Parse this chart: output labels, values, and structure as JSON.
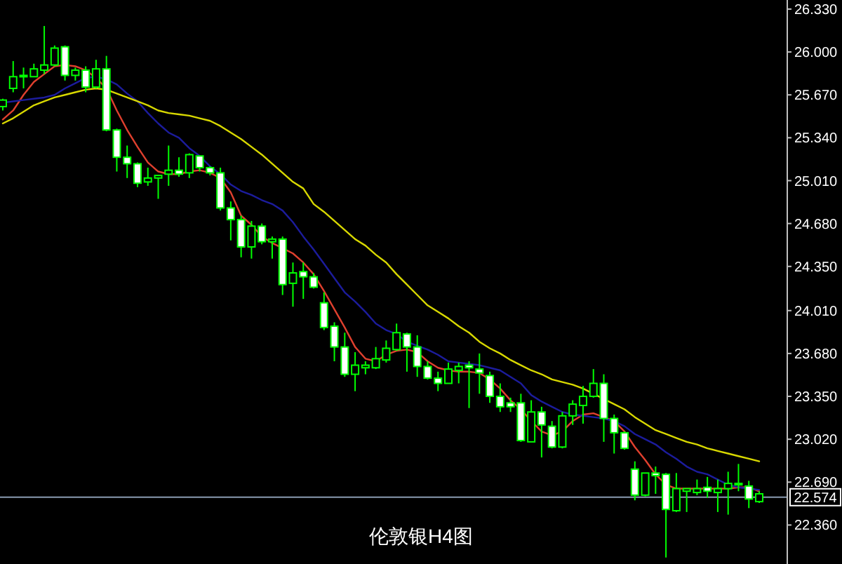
{
  "chart_data": {
    "type": "candlestick",
    "title": "伦敦银H4图",
    "categories": [
      null,
      null,
      null,
      null,
      null,
      null,
      null,
      null,
      null,
      null,
      null,
      null,
      null,
      null,
      null,
      null,
      null,
      null,
      null,
      null,
      null,
      null,
      null,
      null,
      null,
      null,
      null,
      null,
      null,
      null,
      null,
      null,
      null,
      null,
      null,
      null,
      null,
      null,
      null,
      null,
      null,
      null,
      null,
      null,
      null,
      null,
      null,
      null,
      null,
      null,
      null,
      null,
      null,
      null,
      null,
      null,
      null,
      null,
      null,
      null,
      null,
      null,
      null,
      null,
      null,
      null,
      null,
      null,
      null,
      null,
      null,
      null,
      null,
      null
    ],
    "ylim": [
      22.06,
      26.4
    ],
    "yticks": [
      {
        "value": 26.33,
        "label": "26.330"
      },
      {
        "value": 26.0,
        "label": "26.000"
      },
      {
        "value": 25.67,
        "label": "25.670"
      },
      {
        "value": 25.34,
        "label": "25.340"
      },
      {
        "value": 25.01,
        "label": "25.010"
      },
      {
        "value": 24.68,
        "label": "24.680"
      },
      {
        "value": 24.35,
        "label": "24.350"
      },
      {
        "value": 24.01,
        "label": "24.010"
      },
      {
        "value": 23.68,
        "label": "23.680"
      },
      {
        "value": 23.35,
        "label": "23.350"
      },
      {
        "value": 23.02,
        "label": "23.020"
      },
      {
        "value": 22.69,
        "label": "22.690"
      },
      {
        "value": 22.36,
        "label": "22.360"
      }
    ],
    "tick_labels": "y",
    "grid": false,
    "ref_lines": [
      {
        "axis": "y",
        "value": 22.574,
        "label": "22.574",
        "color": "#8a9bb0"
      }
    ],
    "series": [
      {
        "color": "#00ff00",
        "ohlc": [
          [
            25.58,
            25.64,
            25.55,
            25.63
          ],
          [
            25.72,
            25.93,
            25.69,
            25.81
          ],
          [
            25.81,
            25.88,
            25.72,
            25.82
          ],
          [
            25.81,
            25.91,
            25.81,
            25.87
          ],
          [
            25.86,
            26.2,
            25.83,
            25.9
          ],
          [
            25.9,
            26.05,
            25.89,
            26.03
          ],
          [
            26.04,
            26.05,
            25.78,
            25.82
          ],
          [
            25.82,
            25.88,
            25.78,
            25.86
          ],
          [
            25.86,
            25.89,
            25.69,
            25.73
          ],
          [
            25.73,
            25.94,
            25.72,
            25.87
          ],
          [
            25.87,
            25.97,
            25.39,
            25.4
          ],
          [
            25.4,
            25.41,
            25.08,
            25.19
          ],
          [
            25.19,
            25.28,
            25.03,
            25.14
          ],
          [
            25.14,
            25.15,
            24.96,
            24.99
          ],
          [
            25.0,
            25.11,
            24.97,
            25.03
          ],
          [
            25.03,
            25.05,
            24.87,
            25.05
          ],
          [
            25.06,
            25.28,
            24.97,
            25.09
          ],
          [
            25.09,
            25.19,
            25.04,
            25.06
          ],
          [
            25.07,
            25.22,
            25.03,
            25.21
          ],
          [
            25.2,
            25.2,
            25.08,
            25.11
          ],
          [
            25.11,
            25.12,
            25.05,
            25.07
          ],
          [
            25.07,
            25.11,
            24.78,
            24.8
          ],
          [
            24.8,
            24.85,
            24.55,
            24.71
          ],
          [
            24.71,
            24.74,
            24.42,
            24.5
          ],
          [
            24.5,
            24.7,
            24.41,
            24.66
          ],
          [
            24.66,
            24.68,
            24.52,
            24.54
          ],
          [
            24.54,
            24.58,
            24.41,
            24.56
          ],
          [
            24.56,
            24.58,
            24.13,
            24.21
          ],
          [
            24.22,
            24.38,
            24.04,
            24.3
          ],
          [
            24.31,
            24.38,
            24.1,
            24.27
          ],
          [
            24.27,
            24.3,
            24.18,
            24.19
          ],
          [
            24.07,
            24.15,
            23.86,
            23.88
          ],
          [
            23.89,
            23.92,
            23.62,
            23.73
          ],
          [
            23.73,
            23.84,
            23.5,
            23.52
          ],
          [
            23.52,
            23.69,
            23.39,
            23.59
          ],
          [
            23.57,
            23.62,
            23.52,
            23.59
          ],
          [
            23.57,
            23.73,
            23.56,
            23.64
          ],
          [
            23.63,
            23.78,
            23.61,
            23.72
          ],
          [
            23.71,
            23.91,
            23.7,
            23.84
          ],
          [
            23.83,
            23.84,
            23.54,
            23.73
          ],
          [
            23.73,
            23.82,
            23.5,
            23.58
          ],
          [
            23.58,
            23.62,
            23.48,
            23.49
          ],
          [
            23.49,
            23.54,
            23.39,
            23.45
          ],
          [
            23.45,
            23.61,
            23.45,
            23.56
          ],
          [
            23.55,
            23.61,
            23.45,
            23.58
          ],
          [
            23.59,
            23.62,
            23.26,
            23.57
          ],
          [
            23.56,
            23.68,
            23.37,
            23.53
          ],
          [
            23.51,
            23.54,
            23.3,
            23.35
          ],
          [
            23.35,
            23.45,
            23.23,
            23.27
          ],
          [
            23.3,
            23.34,
            23.23,
            23.27
          ],
          [
            23.3,
            23.37,
            23.0,
            23.01
          ],
          [
            23.0,
            23.32,
            23.0,
            23.23
          ],
          [
            23.23,
            23.27,
            22.88,
            23.13
          ],
          [
            23.12,
            23.16,
            22.95,
            22.96
          ],
          [
            22.96,
            23.23,
            22.95,
            23.2
          ],
          [
            23.2,
            23.32,
            23.13,
            23.29
          ],
          [
            23.28,
            23.43,
            23.14,
            23.35
          ],
          [
            23.35,
            23.56,
            23.34,
            23.45
          ],
          [
            23.45,
            23.52,
            23.0,
            23.18
          ],
          [
            23.18,
            23.21,
            22.91,
            23.07
          ],
          [
            23.07,
            23.08,
            22.94,
            22.95
          ],
          [
            22.79,
            22.85,
            22.55,
            22.59
          ],
          [
            22.59,
            22.76,
            22.58,
            22.76
          ],
          [
            22.76,
            22.81,
            22.6,
            22.74
          ],
          [
            22.75,
            22.76,
            22.11,
            22.48
          ],
          [
            22.47,
            22.76,
            22.46,
            22.64
          ],
          [
            22.62,
            22.64,
            22.46,
            22.64
          ],
          [
            22.61,
            22.71,
            22.59,
            22.64
          ],
          [
            22.65,
            22.73,
            22.57,
            22.62
          ],
          [
            22.61,
            22.71,
            22.46,
            22.64
          ],
          [
            22.64,
            22.77,
            22.44,
            22.68
          ],
          [
            22.68,
            22.83,
            22.62,
            22.67
          ],
          [
            22.66,
            22.7,
            22.49,
            22.56
          ],
          [
            22.54,
            22.62,
            22.53,
            22.6
          ]
        ]
      },
      {
        "type": "line",
        "color": "#e0402e",
        "values": [
          25.48,
          25.55,
          25.67,
          25.77,
          25.83,
          25.89,
          25.9,
          25.89,
          25.86,
          25.8,
          25.72,
          25.55,
          25.4,
          25.27,
          25.15,
          25.08,
          25.06,
          25.06,
          25.08,
          25.09,
          25.07,
          25.03,
          24.92,
          24.74,
          24.67,
          24.58,
          24.53,
          24.49,
          24.45,
          24.38,
          24.29,
          24.16,
          24.02,
          23.88,
          23.73,
          23.64,
          23.62,
          23.67,
          23.7,
          23.71,
          23.69,
          23.62,
          23.57,
          23.55,
          23.54,
          23.54,
          23.53,
          23.48,
          23.41,
          23.32,
          23.25,
          23.16,
          23.08,
          23.05,
          23.08,
          23.16,
          23.21,
          23.22,
          23.19,
          23.16,
          23.08,
          22.96,
          22.86,
          22.75,
          22.67,
          22.64,
          22.64,
          22.64,
          22.64,
          22.64,
          22.64,
          22.65,
          22.65,
          22.62
        ]
      },
      {
        "type": "line",
        "color": "#1c1c9c",
        "values": [
          25.61,
          25.62,
          25.63,
          25.64,
          25.65,
          25.67,
          25.72,
          25.76,
          25.8,
          25.81,
          25.79,
          25.75,
          25.68,
          25.62,
          25.53,
          25.45,
          25.38,
          25.34,
          25.26,
          25.2,
          25.12,
          25.06,
          24.98,
          24.93,
          24.9,
          24.86,
          24.83,
          24.78,
          24.69,
          24.58,
          24.48,
          24.37,
          24.26,
          24.15,
          24.08,
          24.0,
          23.91,
          23.86,
          23.83,
          23.77,
          23.74,
          23.71,
          23.67,
          23.62,
          23.61,
          23.6,
          23.59,
          23.57,
          23.55,
          23.5,
          23.45,
          23.36,
          23.31,
          23.27,
          23.23,
          23.21,
          23.2,
          23.19,
          23.18,
          23.16,
          23.12,
          23.06,
          23.02,
          22.98,
          22.92,
          22.87,
          22.81,
          22.77,
          22.75,
          22.71,
          22.67,
          22.65,
          22.64,
          22.63
        ]
      },
      {
        "type": "line",
        "color": "#d8d800",
        "values": [
          25.45,
          25.49,
          25.54,
          25.59,
          25.62,
          25.65,
          25.67,
          25.69,
          25.71,
          25.72,
          25.71,
          25.68,
          25.65,
          25.62,
          25.59,
          25.55,
          25.53,
          25.52,
          25.51,
          25.49,
          25.47,
          25.43,
          25.38,
          25.33,
          25.27,
          25.21,
          25.14,
          25.07,
          25.0,
          24.95,
          24.83,
          24.77,
          24.7,
          24.63,
          24.56,
          24.51,
          24.44,
          24.38,
          24.29,
          24.21,
          24.13,
          24.05,
          24.0,
          23.95,
          23.89,
          23.84,
          23.77,
          23.72,
          23.68,
          23.63,
          23.59,
          23.55,
          23.52,
          23.48,
          23.46,
          23.44,
          23.41,
          23.37,
          23.33,
          23.29,
          23.25,
          23.19,
          23.14,
          23.09,
          23.06,
          23.03,
          23.0,
          22.98,
          22.95,
          22.93,
          22.91,
          22.89,
          22.87,
          22.85
        ]
      }
    ]
  }
}
